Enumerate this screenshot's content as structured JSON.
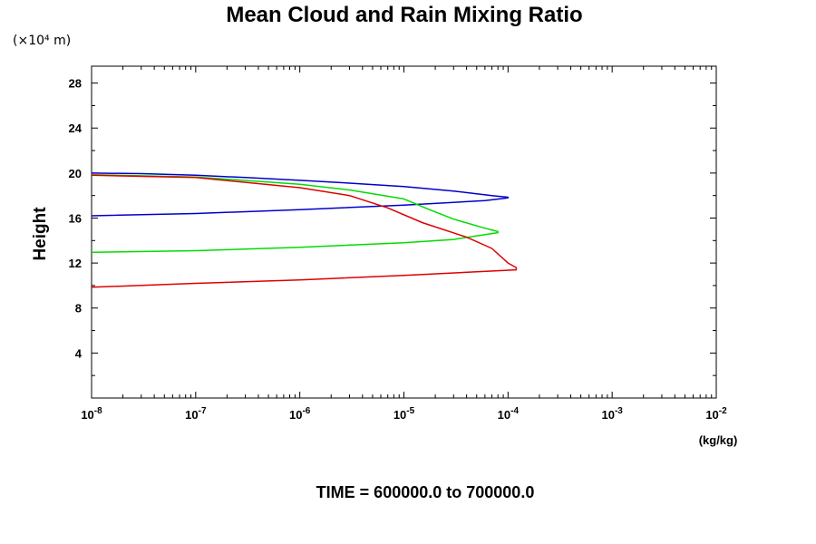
{
  "chart_data": {
    "type": "line",
    "title": "Mean Cloud and Rain Mixing Ratio",
    "y_units_label": "(×10⁴ m)",
    "ylabel": "Height",
    "x_units_label": "(kg/kg)",
    "footer": "TIME = 600000.0 to 700000.0",
    "xscale": "log",
    "xlim": [
      1e-08,
      0.01
    ],
    "ylim": [
      0,
      29.5
    ],
    "x_ticks": [
      {
        "base": "10",
        "exp": "-8",
        "value": 1e-08
      },
      {
        "base": "10",
        "exp": "-7",
        "value": 1e-07
      },
      {
        "base": "10",
        "exp": "-6",
        "value": 1e-06
      },
      {
        "base": "10",
        "exp": "-5",
        "value": 1e-05
      },
      {
        "base": "10",
        "exp": "-4",
        "value": 0.0001
      },
      {
        "base": "10",
        "exp": "-3",
        "value": 0.001
      },
      {
        "base": "10",
        "exp": "-2",
        "value": 0.01
      }
    ],
    "y_ticks": [
      4,
      8,
      12,
      16,
      20,
      24,
      28
    ],
    "grid": false,
    "series": [
      {
        "color": "#0000cc",
        "x": [
          1e-08,
          3e-08,
          1e-07,
          3e-07,
          1e-06,
          3e-06,
          1e-05,
          3e-05,
          7e-05,
          0.0001,
          0.0001,
          6e-05,
          1e-05,
          1e-06,
          1e-07,
          1e-08
        ],
        "y": [
          20.0,
          19.95,
          19.8,
          19.6,
          19.35,
          19.1,
          18.8,
          18.4,
          18.0,
          17.85,
          17.8,
          17.55,
          17.15,
          16.75,
          16.4,
          16.2
        ]
      },
      {
        "color": "#00dd00",
        "x": [
          1e-08,
          1e-07,
          1e-06,
          3e-06,
          1e-05,
          1.7e-05,
          3e-05,
          6e-05,
          8e-05,
          8e-05,
          3e-05,
          1e-05,
          1e-06,
          1e-07,
          1e-08
        ],
        "y": [
          19.85,
          19.65,
          19.0,
          18.5,
          17.7,
          16.8,
          15.9,
          15.1,
          14.8,
          14.7,
          14.1,
          13.8,
          13.4,
          13.1,
          12.95
        ]
      },
      {
        "color": "#dd0000",
        "x": [
          1e-08,
          1e-07,
          1e-06,
          3e-06,
          7e-06,
          1.5e-05,
          4e-05,
          7e-05,
          0.0001,
          0.00012,
          0.00012,
          1e-05,
          1e-06,
          1e-07,
          1e-08
        ],
        "y": [
          19.8,
          19.6,
          18.7,
          18.0,
          16.9,
          15.6,
          14.3,
          13.3,
          12.0,
          11.6,
          11.4,
          10.9,
          10.5,
          10.2,
          9.85
        ]
      }
    ]
  }
}
